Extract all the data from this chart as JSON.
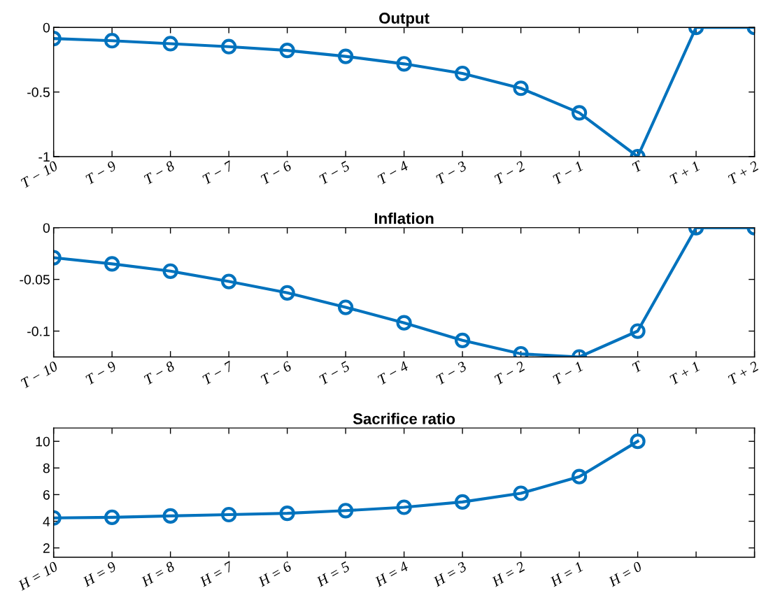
{
  "chart_data": [
    {
      "type": "line",
      "title": "Output",
      "categories": [
        "T − 10",
        "T − 9",
        "T − 8",
        "T − 7",
        "T − 6",
        "T − 5",
        "T − 4",
        "T − 3",
        "T − 2",
        "T − 1",
        "T",
        "T + 1",
        "T + 2"
      ],
      "series": [
        {
          "color": "#0072bd",
          "values": [
            -0.086,
            -0.103,
            -0.126,
            -0.149,
            -0.178,
            -0.224,
            -0.282,
            -0.356,
            -0.471,
            -0.661,
            -1,
            0,
            0
          ]
        }
      ],
      "ylim": [
        -1,
        0
      ],
      "yticks": [
        -1,
        -0.5,
        0
      ],
      "grid": false,
      "marker": "circle",
      "line_style": "solid"
    },
    {
      "type": "line",
      "title": "Inflation",
      "categories": [
        "T − 10",
        "T − 9",
        "T − 8",
        "T − 7",
        "T − 6",
        "T − 5",
        "T − 4",
        "T − 3",
        "T − 2",
        "T − 1",
        "T",
        "T + 1",
        "T + 2"
      ],
      "series": [
        {
          "color": "#0072bd",
          "values": [
            -0.029,
            -0.035,
            -0.042,
            -0.052,
            -0.063,
            -0.077,
            -0.092,
            -0.109,
            -0.122,
            -0.125,
            -0.1,
            0,
            0
          ]
        }
      ],
      "ylim": [
        -0.125,
        0
      ],
      "yticks": [
        -0.1,
        -0.05,
        0
      ],
      "grid": false,
      "marker": "circle",
      "line_style": "solid"
    },
    {
      "type": "line",
      "title": "Sacrifice ratio",
      "categories": [
        "H = 10",
        "H = 9",
        "H = 8",
        "H = 7",
        "H = 6",
        "H = 5",
        "H = 4",
        "H = 3",
        "H = 2",
        "H = 1",
        "H = 0",
        null,
        null
      ],
      "series": [
        {
          "color": "#0072bd",
          "values": [
            4.25,
            4.3,
            4.4,
            4.5,
            4.6,
            4.8,
            5.05,
            5.45,
            6.1,
            7.35,
            10,
            null,
            null
          ]
        }
      ],
      "ylim": [
        1.3,
        11
      ],
      "yticks": [
        2,
        4,
        6,
        8,
        10
      ],
      "grid": false,
      "marker": "circle",
      "line_style": "solid"
    }
  ]
}
